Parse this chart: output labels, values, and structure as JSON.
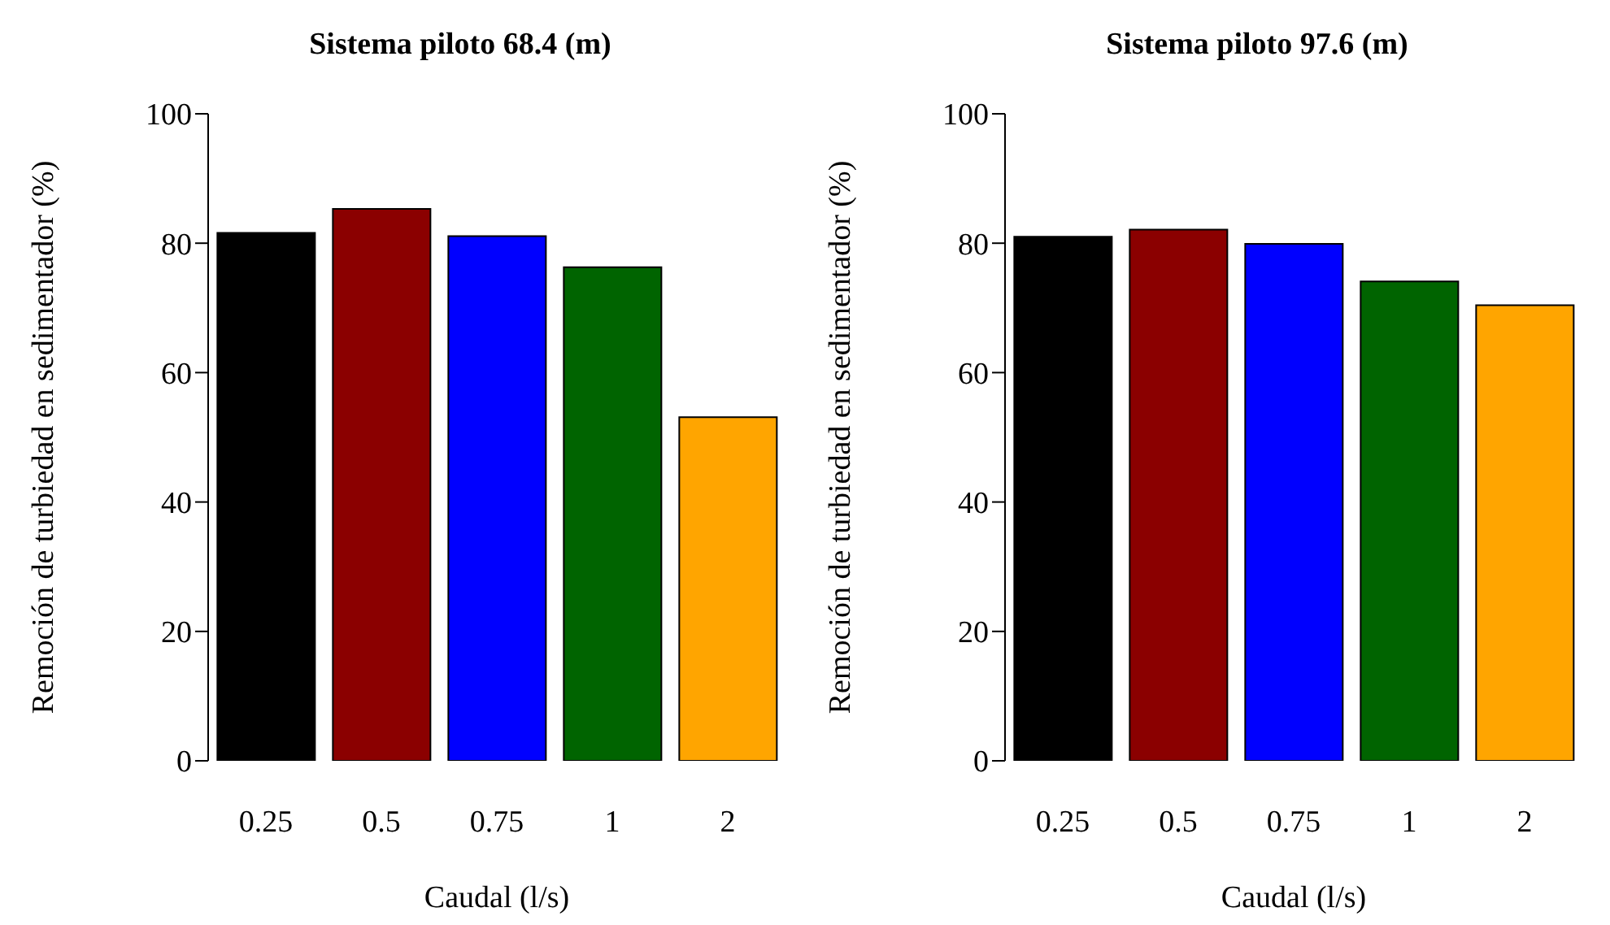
{
  "chart_data": [
    {
      "type": "bar",
      "title": "Sistema piloto 68.4 (m)",
      "xlabel": "Caudal (l/s)",
      "ylabel": "Remoción de turbiedad en sedimentador (%)",
      "categories": [
        "0.25",
        "0.5",
        "0.75",
        "1",
        "2"
      ],
      "values": [
        81.6,
        85.3,
        81.1,
        76.3,
        53.1
      ],
      "colors": [
        "#000000",
        "#8b0000",
        "#0000ff",
        "#006400",
        "#ffa500"
      ],
      "ylim": [
        0,
        100
      ],
      "yticks": [
        0,
        20,
        40,
        60,
        80,
        100
      ]
    },
    {
      "type": "bar",
      "title": "Sistema piloto 97.6 (m)",
      "xlabel": "Caudal (l/s)",
      "ylabel": "Remoción de turbiedad en sedimentador (%)",
      "categories": [
        "0.25",
        "0.5",
        "0.75",
        "1",
        "2"
      ],
      "values": [
        81.0,
        82.1,
        79.9,
        74.1,
        70.4
      ],
      "colors": [
        "#000000",
        "#8b0000",
        "#0000ff",
        "#006400",
        "#ffa500"
      ],
      "ylim": [
        0,
        100
      ],
      "yticks": [
        0,
        20,
        40,
        60,
        80,
        100
      ]
    }
  ]
}
